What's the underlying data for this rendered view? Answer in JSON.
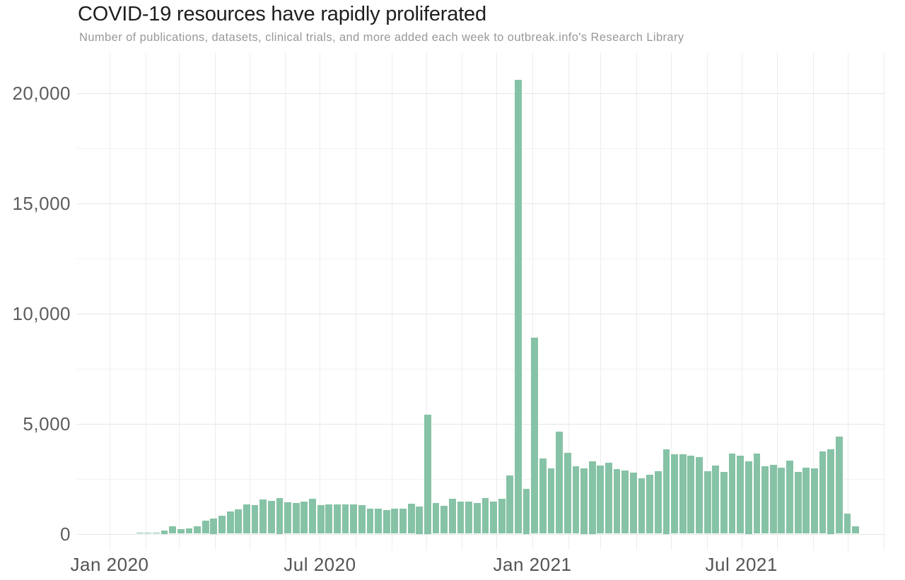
{
  "page": {
    "background": "#ffffff"
  },
  "chart_data": {
    "type": "bar",
    "title": "COVID-19 resources have rapidly proliferated",
    "subtitle": "Number of publications, datasets, clinical trials, and more added each week to outbreak.info's Research Library",
    "xlabel": "",
    "ylabel": "",
    "ylim": [
      0,
      20000
    ],
    "y_ticks": [
      0,
      5000,
      10000,
      15000,
      20000
    ],
    "y_tick_labels": [
      "0",
      "5,000",
      "10,000",
      "15,000",
      "20,000"
    ],
    "y_minor_ticks": [
      2500,
      7500,
      12500,
      17500
    ],
    "x_tick_labels": [
      "Jan 2020",
      "Jul 2020",
      "Jan 2021",
      "Jul 2021"
    ],
    "grid": "both",
    "legend": "none",
    "bar_color": "#86c3a6",
    "colors": {
      "title": "#1e1e1e",
      "subtitle": "#97989a",
      "axis_labels": "#5d5d5f",
      "major_gridline": "#e6e6e6",
      "minor_gridline": "#f2f2f2",
      "month_gridline": "#ededed"
    },
    "x": [
      "2020-01-26",
      "2020-02-02",
      "2020-02-09",
      "2020-02-16",
      "2020-02-23",
      "2020-03-01",
      "2020-03-08",
      "2020-03-15",
      "2020-03-22",
      "2020-03-29",
      "2020-04-05",
      "2020-04-12",
      "2020-04-19",
      "2020-04-26",
      "2020-05-03",
      "2020-05-10",
      "2020-05-17",
      "2020-05-24",
      "2020-05-31",
      "2020-06-07",
      "2020-06-14",
      "2020-06-21",
      "2020-06-28",
      "2020-07-05",
      "2020-07-12",
      "2020-07-19",
      "2020-07-26",
      "2020-08-02",
      "2020-08-09",
      "2020-08-16",
      "2020-08-23",
      "2020-08-30",
      "2020-09-06",
      "2020-09-13",
      "2020-09-20",
      "2020-09-27",
      "2020-10-04",
      "2020-10-11",
      "2020-10-18",
      "2020-10-25",
      "2020-11-01",
      "2020-11-08",
      "2020-11-15",
      "2020-11-22",
      "2020-11-29",
      "2020-12-06",
      "2020-12-13",
      "2020-12-20",
      "2020-12-27",
      "2021-01-03",
      "2021-01-10",
      "2021-01-17",
      "2021-01-24",
      "2021-01-31",
      "2021-02-07",
      "2021-02-14",
      "2021-02-21",
      "2021-02-28",
      "2021-03-07",
      "2021-03-14",
      "2021-03-21",
      "2021-03-28",
      "2021-04-04",
      "2021-04-11",
      "2021-04-18",
      "2021-04-25",
      "2021-05-02",
      "2021-05-09",
      "2021-05-16",
      "2021-05-23",
      "2021-05-30",
      "2021-06-06",
      "2021-06-13",
      "2021-06-20",
      "2021-06-27",
      "2021-07-04",
      "2021-07-11",
      "2021-07-18",
      "2021-07-25",
      "2021-08-01",
      "2021-08-08",
      "2021-08-15",
      "2021-08-22",
      "2021-08-29",
      "2021-09-05",
      "2021-09-12",
      "2021-09-19",
      "2021-09-26"
    ],
    "values": [
      50,
      60,
      60,
      145,
      340,
      200,
      250,
      340,
      600,
      690,
      830,
      1000,
      1100,
      1320,
      1300,
      1560,
      1480,
      1620,
      1420,
      1400,
      1450,
      1600,
      1300,
      1320,
      1340,
      1320,
      1340,
      1290,
      1150,
      1150,
      1070,
      1130,
      1150,
      1360,
      1250,
      5400,
      1400,
      1260,
      1580,
      1450,
      1470,
      1400,
      1610,
      1470,
      1580,
      2650,
      20600,
      2050,
      8900,
      3420,
      2960,
      4640,
      3680,
      3070,
      2980,
      3300,
      3090,
      3230,
      2940,
      2880,
      2770,
      2530,
      2680,
      2850,
      3830,
      3600,
      3600,
      3550,
      3490,
      2850,
      3090,
      2800,
      3650,
      3550,
      3300,
      3650,
      3070,
      3120,
      3010,
      3330,
      2800,
      3010,
      2970,
      3720,
      3830,
      4400,
      900,
      350
    ]
  }
}
